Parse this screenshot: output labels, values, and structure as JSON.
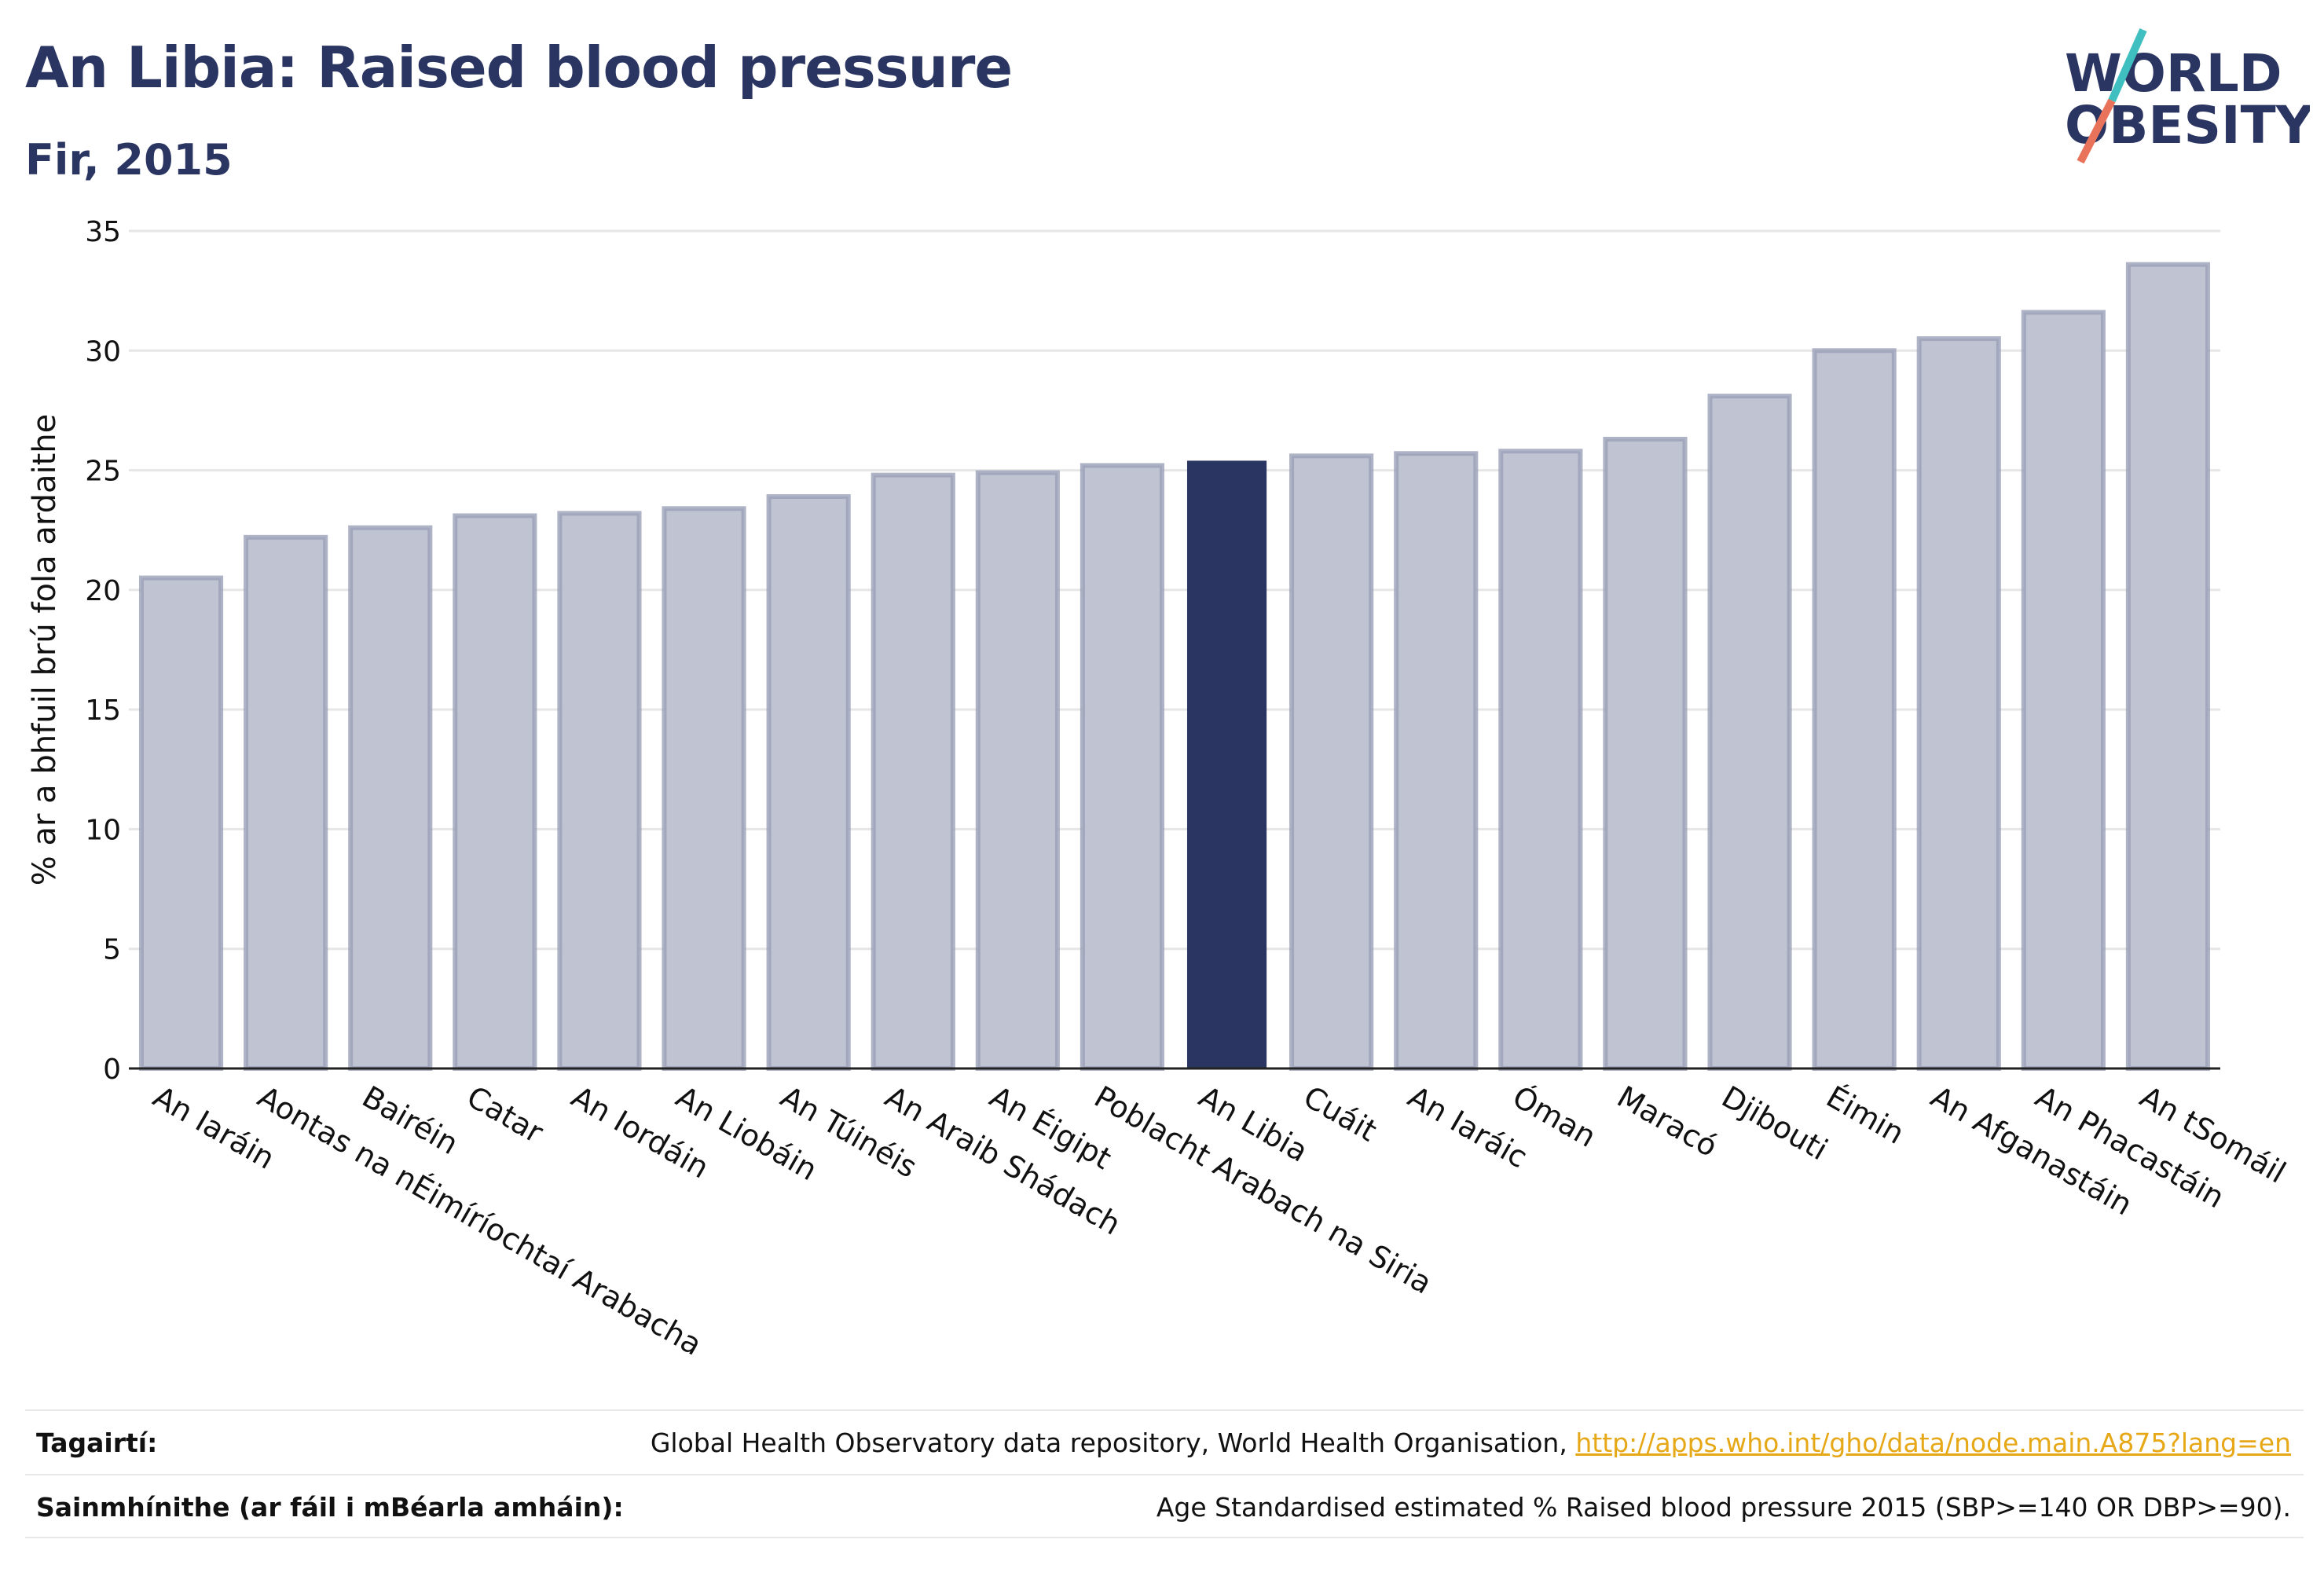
{
  "header": {
    "title": "An Libia: Raised blood pressure",
    "subtitle": "Fir, 2015"
  },
  "logo": {
    "line1": "WORLD",
    "line2": "OBESITY",
    "colors": {
      "text": "#2b3562",
      "slash_top": "#3fbfbf",
      "slash_bottom": "#e8735a"
    }
  },
  "chart_data": {
    "type": "bar",
    "title": "An Libia: Raised blood pressure",
    "subtitle": "Fir, 2015",
    "ylabel": "% ar a bhfuil brú fola ardaithe",
    "xlabel": "",
    "ylim": [
      0,
      35
    ],
    "yticks": [
      0,
      5,
      10,
      15,
      20,
      25,
      30,
      35
    ],
    "grid": true,
    "highlight_category": "An Libia",
    "colors": {
      "bar": "#c0c4d2",
      "bar_border": "#9aa0b8",
      "highlight": "#2b3562"
    },
    "categories": [
      "An Iaráin",
      "Aontas na nÉimíríochtaí Arabacha",
      "Bairéin",
      "Catar",
      "An Iordáin",
      "An Liobáin",
      "An Túinéis",
      "An Araib Shádach",
      "An Éigipt",
      "Poblacht Arabach na Siria",
      "An Libia",
      "Cuáit",
      "An Iaráic",
      "Óman",
      "Maracó",
      "Djibouti",
      "Éimin",
      "An Afganastáin",
      "An Phacastáin",
      "An tSomáil"
    ],
    "values": [
      20.5,
      22.2,
      22.6,
      23.1,
      23.2,
      23.4,
      23.9,
      24.8,
      24.9,
      25.2,
      25.4,
      25.6,
      25.7,
      25.8,
      26.3,
      28.1,
      30.0,
      30.5,
      31.6,
      33.6
    ]
  },
  "footer": {
    "references_label": "Tagairtí:",
    "references_text": "Global Health Observatory data repository, World Health Organisation,",
    "references_link": "http://apps.who.int/gho/data/node.main.A875?lang=en",
    "definitions_label": "Sainmhínithe (ar fáil i mBéarla amháin):",
    "definitions_text": "Age Standardised estimated % Raised blood pressure 2015 (SBP>=140 OR DBP>=90)."
  }
}
